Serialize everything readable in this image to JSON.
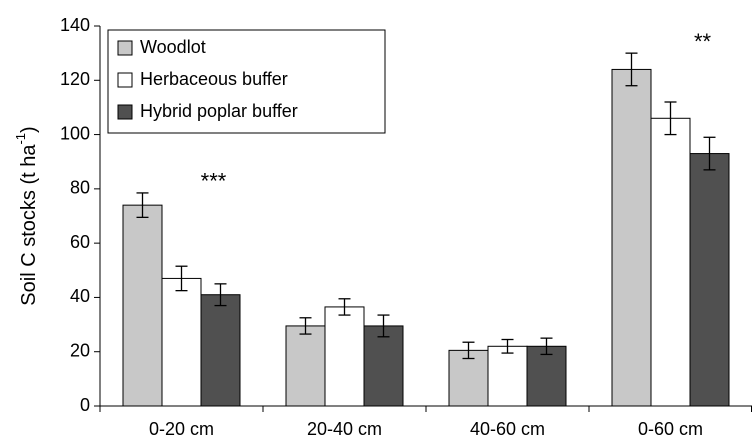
{
  "chart_data": {
    "type": "bar",
    "ylabel": {
      "text": "Soil C stocks (t ha",
      "superscript": "-1",
      "suffix": ")"
    },
    "categories": [
      "0-20 cm",
      "20-40 cm",
      "40-60 cm",
      "0-60 cm"
    ],
    "series": [
      {
        "name": "Woodlot",
        "color": "#c8c8c8",
        "values": [
          74,
          29.5,
          20.5,
          124
        ],
        "errors": [
          4.5,
          3,
          3,
          6
        ]
      },
      {
        "name": "Herbaceous buffer",
        "color": "#ffffff",
        "values": [
          47,
          36.5,
          22,
          106
        ],
        "errors": [
          4.5,
          3,
          2.5,
          6
        ]
      },
      {
        "name": "Hybrid poplar buffer",
        "color": "#505050",
        "values": [
          41,
          29.5,
          22,
          93
        ],
        "errors": [
          4,
          4,
          3,
          6
        ]
      }
    ],
    "annotations": [
      {
        "category": "0-20 cm",
        "text": "***"
      },
      {
        "category": "0-60 cm",
        "text": "**"
      }
    ],
    "ylim": [
      0,
      140
    ],
    "yticks": [
      0,
      20,
      40,
      60,
      80,
      100,
      120,
      140
    ],
    "legend": "top-left"
  }
}
